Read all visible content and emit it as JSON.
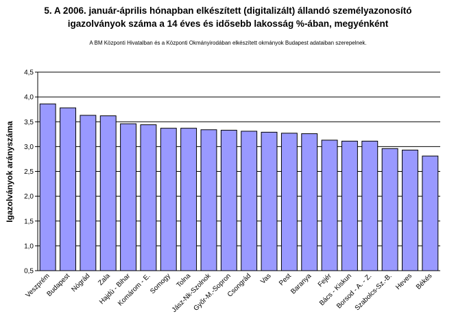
{
  "chart_data": {
    "type": "bar",
    "title_line1": "5. A 2006. január-április hónapban elkészített (digitalizált) állandó személyazonosító",
    "title_line2": "igazolványok száma a 14 éves és idősebb lakosság %-ában, megyénként",
    "subtitle": "A BM Központi Hivatalban és a Központi Okmányirodában elkészített okmányok Budapest adataiban szerepelnek.",
    "ylabel": "Igazolványok arányszáma",
    "xlabel": "",
    "ylim": [
      0.5,
      4.5
    ],
    "yticks": [
      "0,5",
      "1,0",
      "1,5",
      "2,0",
      "2,5",
      "3,0",
      "3,5",
      "4,0",
      "4,5"
    ],
    "grid": true,
    "bar_color": "#9999ff",
    "categories": [
      "Veszprém",
      "Budapest",
      "Nógrád",
      "Zala",
      "Hajdú - Bihar",
      "Komárom - E.",
      "Somogy",
      "Tolna",
      "Jász-Nk-Szolnok",
      "Győr-M.-Sopron",
      "Csongrád",
      "Vas",
      "Pest",
      "Baranya",
      "Fejér",
      "Bács - Kiskun",
      "Borsod - A. - Z.",
      "Szabolcs-Sz.-B.",
      "Heves",
      "Békés"
    ],
    "values": [
      3.86,
      3.78,
      3.63,
      3.62,
      3.46,
      3.44,
      3.37,
      3.37,
      3.34,
      3.33,
      3.31,
      3.29,
      3.27,
      3.26,
      3.13,
      3.11,
      3.11,
      2.96,
      2.93,
      2.81
    ]
  }
}
